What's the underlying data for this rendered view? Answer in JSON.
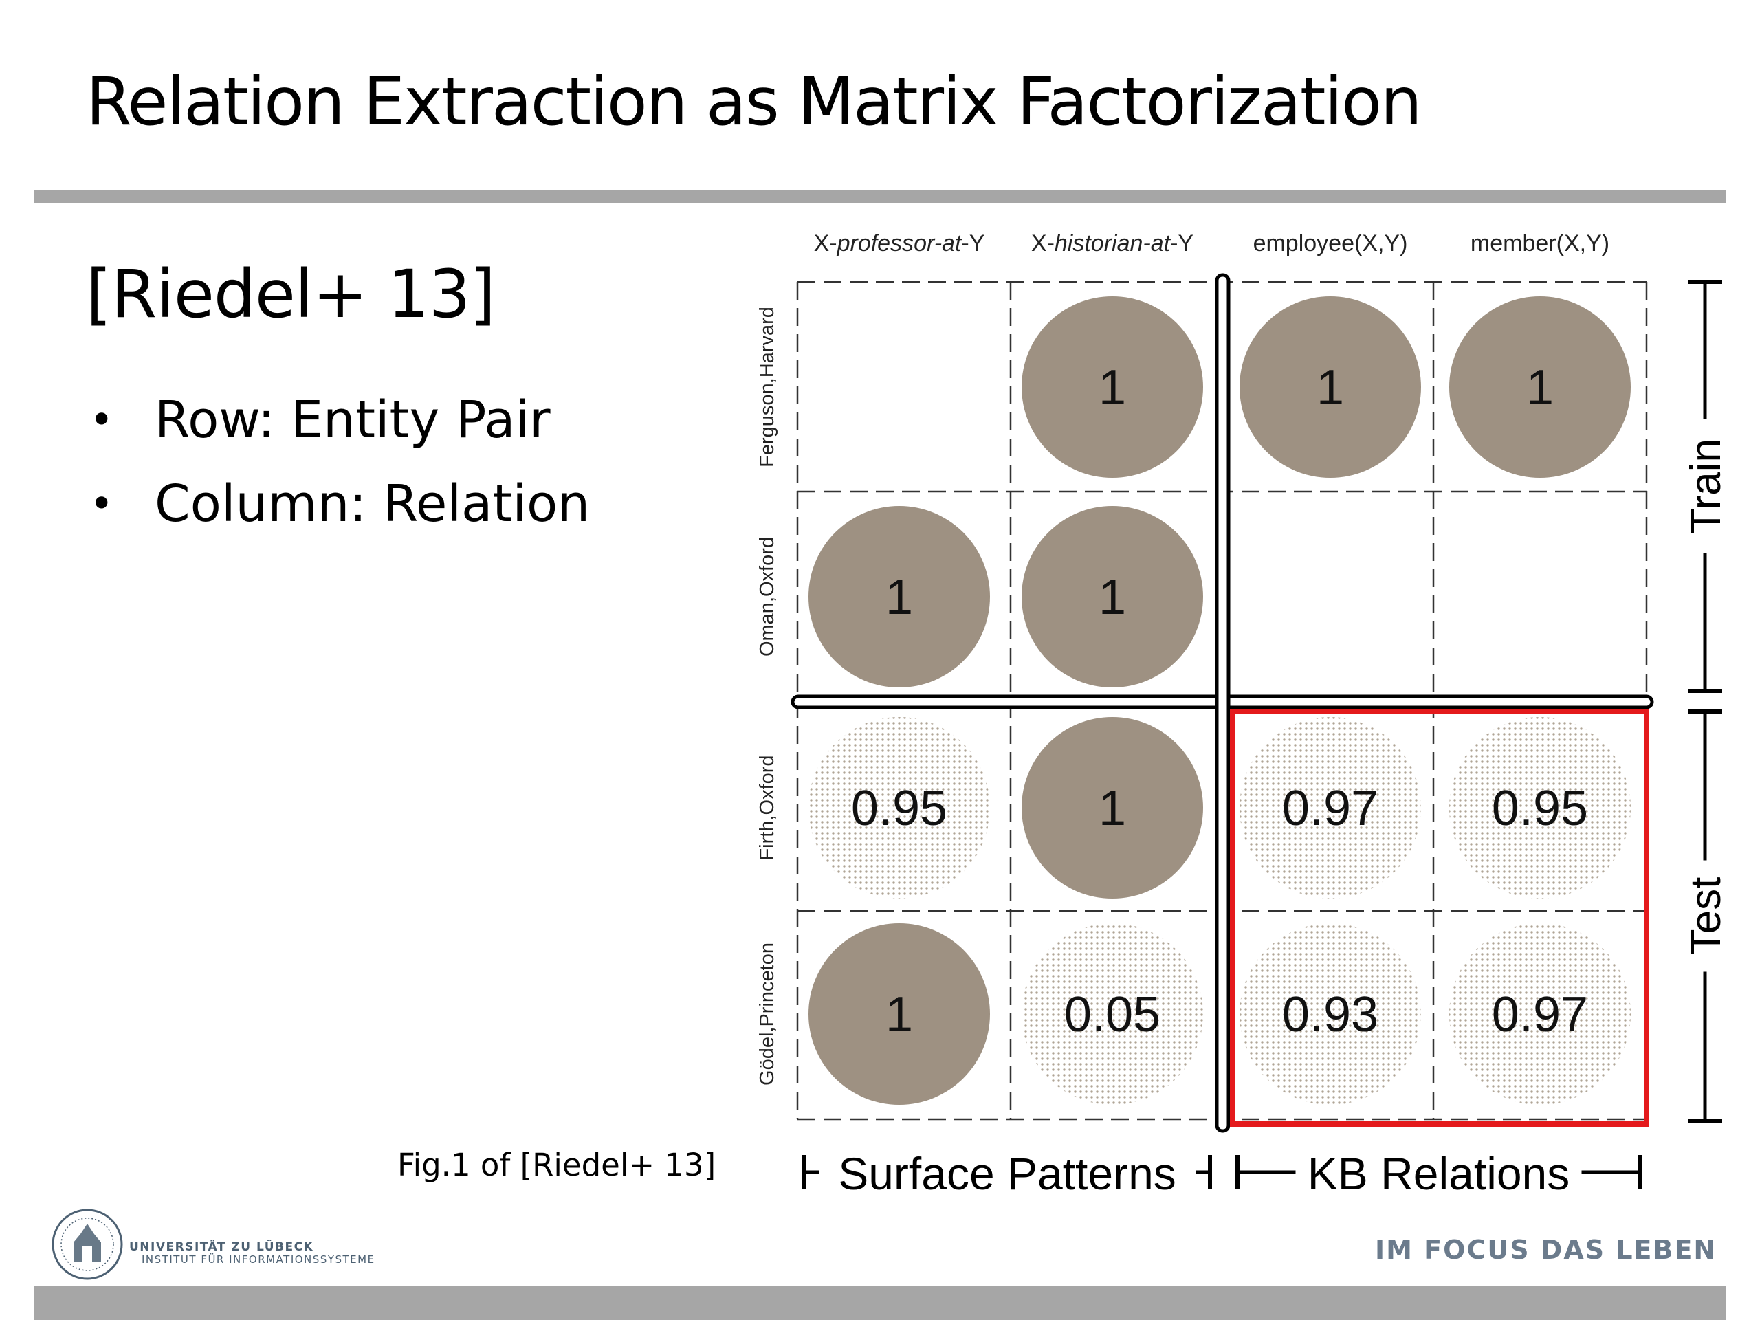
{
  "slide": {
    "title": "Relation Extraction as Matrix Factorization",
    "citation": "[Riedel+ 13]",
    "bullets": [
      "Row: Entity Pair",
      "Column: Relation"
    ],
    "bullet_symbol": "•",
    "caption": "Fig.1 of [Riedel+ 13]"
  },
  "diagram": {
    "columns": [
      {
        "pre": "X-",
        "em": "professor-at",
        "post": "-Y"
      },
      {
        "pre": "X-",
        "em": "historian-at",
        "post": "-Y"
      },
      {
        "pre": "employee(X,Y)",
        "em": "",
        "post": ""
      },
      {
        "pre": "member(X,Y)",
        "em": "",
        "post": ""
      }
    ],
    "rows": [
      "Ferguson,Harvard",
      "Oman,Oxford",
      "Firth,Oxford",
      "Gödel,Princeton"
    ],
    "cells": [
      [
        null,
        "1",
        "1",
        "1"
      ],
      [
        "1",
        "1",
        null,
        null
      ],
      [
        "0.95",
        "1",
        "0.97",
        "0.95"
      ],
      [
        "1",
        "0.05",
        "0.93",
        "0.97"
      ]
    ],
    "cell_kinds": [
      [
        "empty",
        "observed",
        "observed",
        "observed"
      ],
      [
        "observed",
        "observed",
        "empty",
        "empty"
      ],
      [
        "predicted",
        "observed",
        "predicted",
        "predicted"
      ],
      [
        "observed",
        "predicted",
        "predicted",
        "predicted"
      ]
    ],
    "group_labels": {
      "surface": "Surface Patterns",
      "kb": "KB Relations"
    },
    "split_labels": {
      "train": "Train",
      "test": "Test"
    },
    "colors": {
      "observed": "#9e9182",
      "predicted_dot": "#b0a596",
      "highlight": "#e41a1c"
    }
  },
  "footer": {
    "university": "UNIVERSITÄT ZU LÜBECK",
    "institute": "INSTITUT FÜR INFORMATIONSSYSTEME",
    "slogan": "IM FOCUS DAS LEBEN"
  }
}
